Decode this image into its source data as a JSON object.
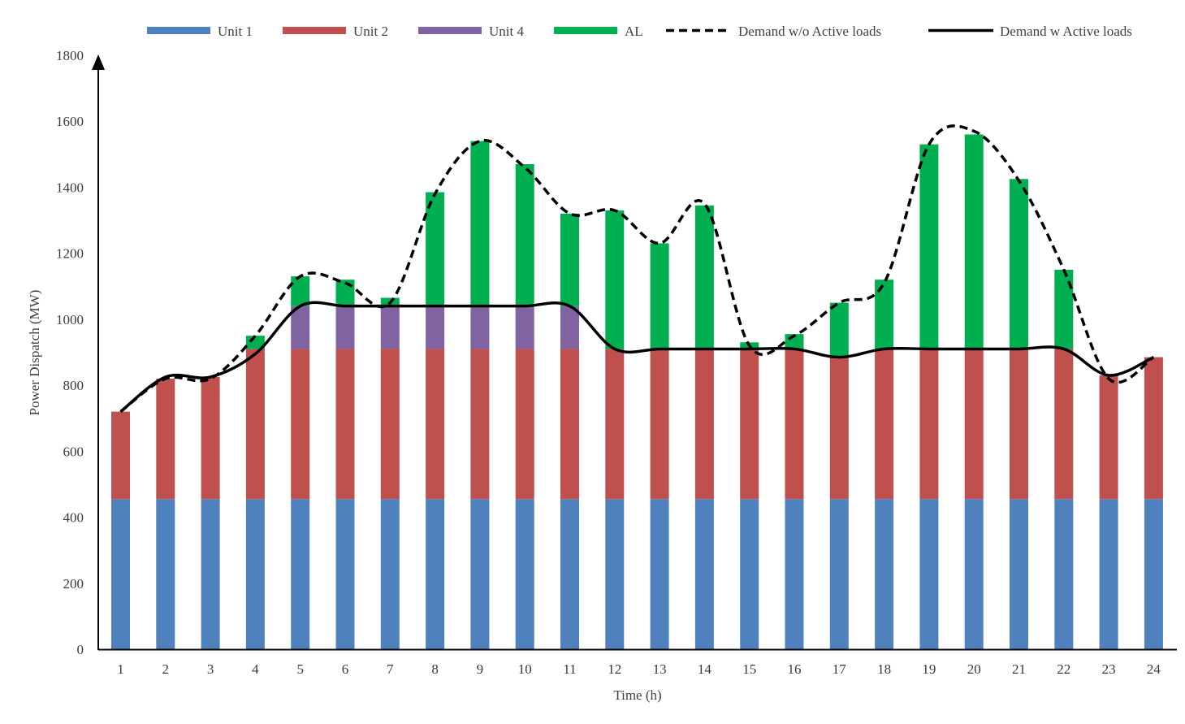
{
  "chart_data": {
    "type": "bar",
    "stacked": true,
    "categories": [
      "1",
      "2",
      "3",
      "4",
      "5",
      "6",
      "7",
      "8",
      "9",
      "10",
      "11",
      "12",
      "13",
      "14",
      "15",
      "16",
      "17",
      "18",
      "19",
      "20",
      "21",
      "22",
      "23",
      "24"
    ],
    "xlabel": "Time (h)",
    "ylabel": "Power Dispatch (MW)",
    "ylim": [
      0,
      1800
    ],
    "yticks": [
      0,
      200,
      400,
      600,
      800,
      1000,
      1200,
      1400,
      1600,
      1800
    ],
    "grid": false,
    "legend_position": "top",
    "series": [
      {
        "name": "Unit 1",
        "kind": "bar",
        "color": "#4f81bd",
        "values": [
          455,
          455,
          455,
          455,
          455,
          455,
          455,
          455,
          455,
          455,
          455,
          455,
          455,
          455,
          455,
          455,
          455,
          455,
          455,
          455,
          455,
          455,
          455,
          455
        ]
      },
      {
        "name": "Unit 2",
        "kind": "bar",
        "color": "#c0504d",
        "values": [
          265,
          365,
          370,
          455,
          455,
          455,
          455,
          455,
          455,
          455,
          455,
          455,
          455,
          455,
          455,
          455,
          430,
          455,
          455,
          455,
          455,
          455,
          375,
          430
        ]
      },
      {
        "name": "Unit 4",
        "kind": "bar",
        "color": "#8064a2",
        "values": [
          0,
          0,
          0,
          0,
          130,
          130,
          130,
          130,
          130,
          130,
          130,
          0,
          0,
          0,
          0,
          0,
          0,
          0,
          0,
          0,
          0,
          0,
          0,
          0
        ]
      },
      {
        "name": "AL",
        "kind": "bar",
        "color": "#00b050",
        "values": [
          0,
          0,
          0,
          40,
          90,
          80,
          25,
          345,
          500,
          430,
          280,
          420,
          320,
          435,
          20,
          45,
          165,
          210,
          620,
          650,
          515,
          240,
          0,
          0
        ]
      },
      {
        "name": "Demand w/o Active loads",
        "kind": "line",
        "style": "dashed",
        "color": "#000000",
        "values": [
          720,
          820,
          820,
          950,
          1130,
          1110,
          1050,
          1380,
          1540,
          1460,
          1320,
          1330,
          1230,
          1350,
          920,
          950,
          1050,
          1110,
          1530,
          1570,
          1420,
          1150,
          820,
          885
        ]
      },
      {
        "name": "Demand w Active loads",
        "kind": "line",
        "style": "solid",
        "color": "#000000",
        "values": [
          720,
          825,
          825,
          895,
          1040,
          1040,
          1040,
          1040,
          1040,
          1040,
          1040,
          910,
          910,
          910,
          910,
          910,
          885,
          910,
          910,
          910,
          910,
          910,
          830,
          885
        ]
      }
    ]
  }
}
